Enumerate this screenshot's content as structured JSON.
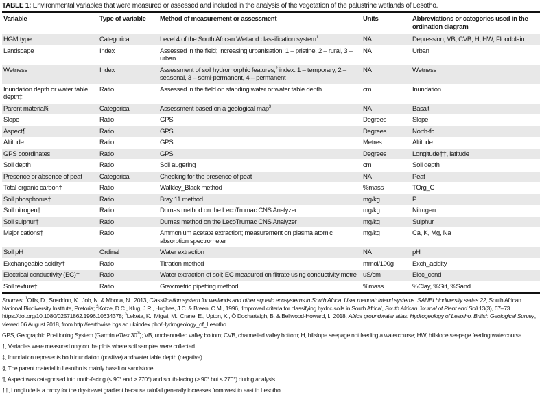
{
  "caption": {
    "label": "TABLE 1:",
    "text": " Environmental variables that were measured or assessed and included in the analysis of the vegetation of the palustrine wetlands of Lesotho."
  },
  "headers": [
    "Variable",
    "Type of variable",
    "Method of measurement or assessment",
    "Units",
    "Abbreviations or categories used in the ordination diagram"
  ],
  "rows": [
    {
      "variable": "HGM type",
      "type": "Categorical",
      "method": "Level 4 of the South African Wetland classification system",
      "sup": "1",
      "units": "NA",
      "abbr": "Depression, VB, CVB, H, HW; Floodplain"
    },
    {
      "variable": "Landscape",
      "type": "Index",
      "method": "Assessed in the field; increasing urbanisation: 1 – pristine, 2 – rural, 3 – urban",
      "units": "NA",
      "abbr": "Urban"
    },
    {
      "variable": "Wetness",
      "type": "Index",
      "method": "Assessment of soil hydromorphic features;",
      "sup": "2",
      "method2": " index: 1 – temporary, 2 – seasonal, 3 – semi-permanent, 4 – permanent",
      "units": "NA",
      "abbr": "Wetness"
    },
    {
      "variable": "Inundation depth or water table depth‡",
      "type": "Ratio",
      "method": "Assessed in the field on standing water or water table depth",
      "units": "cm",
      "abbr": "Inundation"
    },
    {
      "variable": "Parent material§",
      "type": "Categorical",
      "method": "Assessment based on a geological map",
      "sup": "3",
      "units": "NA",
      "abbr": "Basalt"
    },
    {
      "variable": "Slope",
      "type": "Ratio",
      "method": "GPS",
      "units": "Degrees",
      "abbr": "Slope"
    },
    {
      "variable": "Aspect¶",
      "type": "Ratio",
      "method": "GPS",
      "units": "Degrees",
      "abbr": "North-fc"
    },
    {
      "variable": "Altitude",
      "type": "Ratio",
      "method": "GPS",
      "units": "Metres",
      "abbr": "Altitude"
    },
    {
      "variable": "GPS coordinates",
      "type": "Ratio",
      "method": "GPS",
      "units": "Degrees",
      "abbr": "Longitude††, latitude"
    },
    {
      "variable": "Soil depth",
      "type": "Ratio",
      "method": "Soil augering",
      "units": "cm",
      "abbr": "Soil depth"
    },
    {
      "variable": "Presence or absence of peat",
      "type": "Categorical",
      "method": "Checking for the presence of peat",
      "units": "NA",
      "abbr": "Peat"
    },
    {
      "variable": "Total organic carbon†",
      "type": "Ratio",
      "method": "Walkley_Black method",
      "units": "%mass",
      "abbr": "TOrg_C"
    },
    {
      "variable": "Soil phosphorus†",
      "type": "Ratio",
      "method": "Bray 11 method",
      "units": "mg/kg",
      "abbr": "P"
    },
    {
      "variable": "Soil nitrogen†",
      "type": "Ratio",
      "method": "Dumas method on the LecoTrumac CNS Analyzer",
      "units": "mg/kg",
      "abbr": "Nitrogen"
    },
    {
      "variable": "Soil sulphur†",
      "type": "Ratio",
      "method": "Dumas method on the LecoTrumac CNS Analyzer",
      "units": "mg/kg",
      "abbr": "Sulphur"
    },
    {
      "variable": "Major cations†",
      "type": "Ratio",
      "method": "Ammonium acetate extraction; measurement on plasma atomic absorption spectrometer",
      "units": "mg/kg",
      "abbr": "Ca, K, Mg, Na"
    },
    {
      "variable": "Soil pH†",
      "type": "Ordinal",
      "method": "Water extraction",
      "units": "NA",
      "abbr": "pH"
    },
    {
      "variable": "Exchangeable acidity†",
      "type": "Ratio",
      "method": "Titration method",
      "units": "mmol/100g",
      "abbr": "Exch_acidity"
    },
    {
      "variable": "Electrical conductivity (EC)†",
      "type": "Ratio",
      "method": "Water extraction of soil; EC measured on filtrate using conductivity metre",
      "units": "uS/cm",
      "abbr": "Elec_cond"
    },
    {
      "variable": "Soil texture†",
      "type": "Ratio",
      "method": "Gravimetric pipetting method",
      "units": "%mass",
      "abbr": "%Clay, %Silt, %Sand"
    }
  ],
  "notes": {
    "sources": [
      {
        "t": "Sources",
        "i": true
      },
      {
        "t": ": "
      },
      {
        "t": "1",
        "sup": true
      },
      {
        "t": "Ollis, D., Snaddon, K., Job, N. & Mbona, N., 2013, "
      },
      {
        "t": "Classification system for wetlands and other aquatic ecosystems in South Africa. User manual: Inland systems. SANBI biodiversity series 22",
        "i": true
      },
      {
        "t": ", South African National Biodiversity Institute, Pretoria; "
      },
      {
        "t": "2",
        "sup": true
      },
      {
        "t": "Kotze, D.C., Klug, J.R., Hughes, J.C. & Breen, C.M., 1996, ‘Improved criteria for classifying hydric soils in South Africa’, "
      },
      {
        "t": "South African Journal of Plant and Soil",
        "i": true
      },
      {
        "t": " 13(3), 67–73. https://doi.org/10.1080/02571862.1996.10634378; "
      },
      {
        "t": "3",
        "sup": true
      },
      {
        "t": "Leketa, K., Migwi, M., Crane, E., Upton, K., Ó Dochartaigh, B. & Bellwood-Howard, I., 2018, "
      },
      {
        "t": "Africa groundwater atlas: Hydrogeology of Lesotho. British Geological Survey",
        "i": true
      },
      {
        "t": ", viewed 06 August 2018, from http://earthwise.bgs.ac.uk/index.php/Hydrogeology_of_Lesotho."
      }
    ],
    "abbrev": [
      {
        "t": "GPS, Geographic Positioning System (Garmin "
      },
      {
        "t": "eTrex",
        "i": true
      },
      {
        "t": " 30"
      },
      {
        "t": "®",
        "sup": true
      },
      {
        "t": "); VB, unchannelled valley bottom; CVB, channelled valley bottom; H, hillslope seepage not feeding a watercourse; HW, hillslope seepage feeding watercourse."
      }
    ],
    "lines": [
      "†, Variables were measured only on the plots where soil samples were collected.",
      "‡, Inundation represents both inundation (positive) and water table depth (negative).",
      "§, The parent material in Lesotho is mainly basalt or sandstone.",
      "¶, Aspect was categorised into north-facing (≤ 90° and > 270°) and south-facing (> 90° but ≤ 270°) during analysis.",
      "††, Longitude is a proxy for the dry-to-wet gradient because rainfall generally increases from west to east in Lesotho."
    ]
  }
}
